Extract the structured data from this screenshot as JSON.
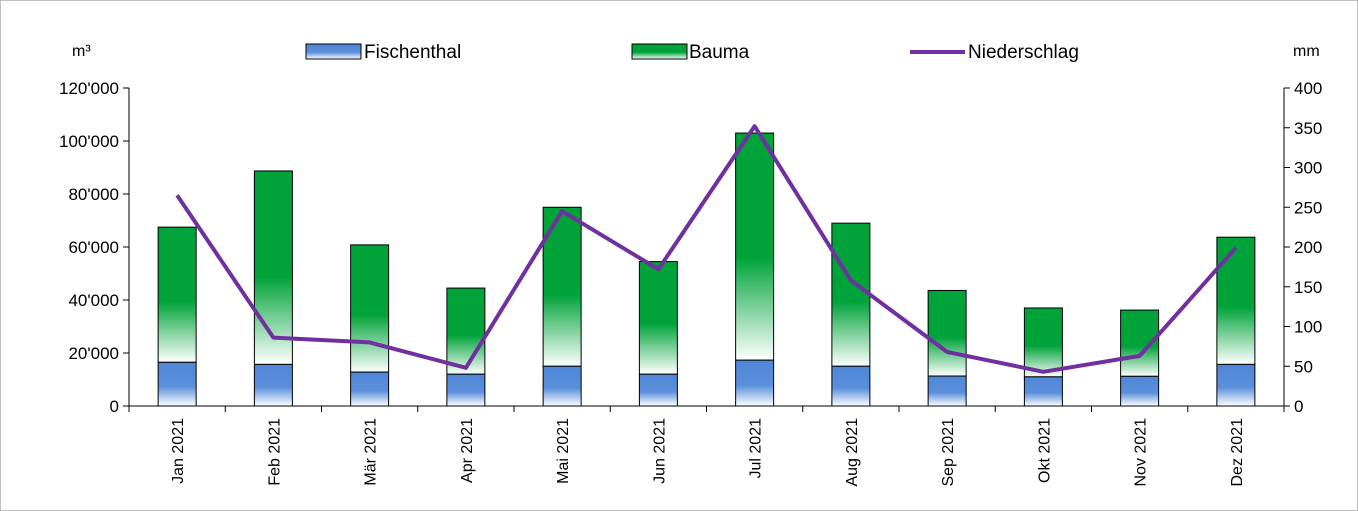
{
  "chart_data": {
    "type": "bar",
    "stacked": true,
    "categories": [
      "Jan 2021",
      "Feb 2021",
      "Mär 2021",
      "Apr 2021",
      "Mai 2021",
      "Jun 2021",
      "Jul 2021",
      "Aug 2021",
      "Sep 2021",
      "Okt 2021",
      "Nov 2021",
      "Dez 2021"
    ],
    "series": [
      {
        "name": "Fischenthal",
        "type": "bar",
        "axis": "left",
        "color": "#4f86d6",
        "values": [
          16500,
          15700,
          12800,
          12000,
          15000,
          12000,
          17300,
          15000,
          11300,
          11000,
          11200,
          15700
        ]
      },
      {
        "name": "Bauma",
        "type": "bar",
        "axis": "left",
        "color": "#00a33a",
        "values": [
          51000,
          73000,
          48000,
          32500,
          60000,
          42500,
          85700,
          54000,
          32300,
          26000,
          25000,
          48000
        ]
      },
      {
        "name": "Niederschlag",
        "type": "line",
        "axis": "right",
        "color": "#7030a0",
        "values": [
          265,
          86,
          80,
          48,
          245,
          172,
          352,
          158,
          68,
          43,
          63,
          199
        ]
      }
    ],
    "yleft": {
      "label": "m³",
      "lim": [
        0,
        120000
      ],
      "ticks": [
        "0",
        "20'000",
        "40'000",
        "60'000",
        "80'000",
        "100'000",
        "120'000"
      ],
      "tickValues": [
        0,
        20000,
        40000,
        60000,
        80000,
        100000,
        120000
      ]
    },
    "yright": {
      "label": "mm",
      "lim": [
        0,
        400
      ],
      "ticks": [
        "0",
        "50",
        "100",
        "150",
        "200",
        "250",
        "300",
        "350",
        "400"
      ],
      "tickValues": [
        0,
        50,
        100,
        150,
        200,
        250,
        300,
        350,
        400
      ]
    },
    "legend": {
      "placement": "top"
    }
  }
}
